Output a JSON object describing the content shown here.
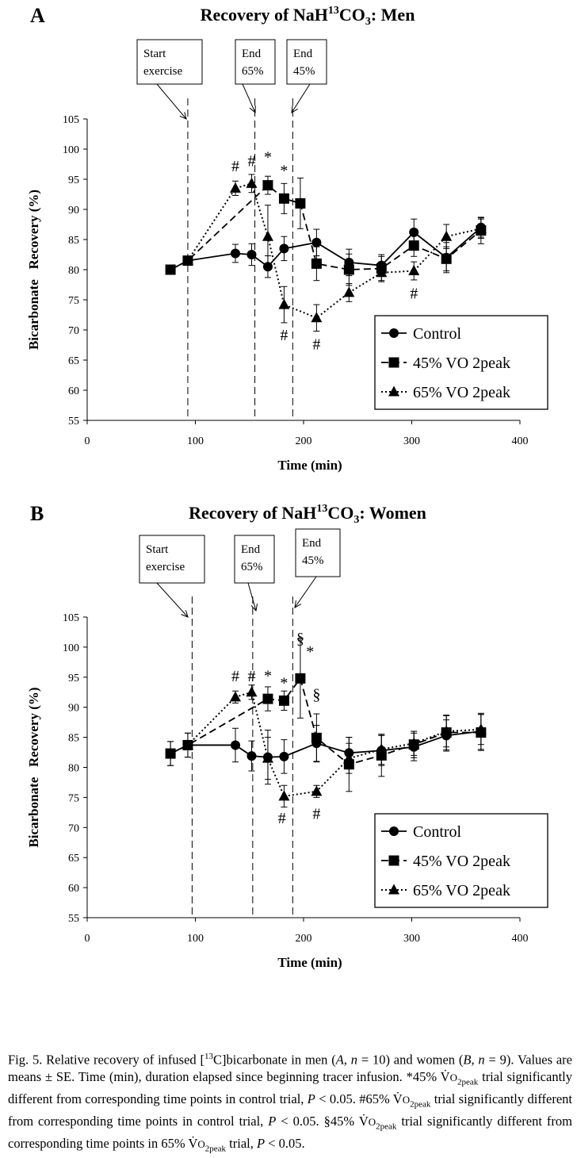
{
  "panels": [
    {
      "letter": "A",
      "title_base": "Recovery of NaH",
      "title_sup": "13",
      "title_mid": "CO",
      "title_sub": "3",
      "title_end": ": Men",
      "chart_data": {
        "type": "line",
        "xlabel": "Time (min)",
        "ylabel_word1": "Bicarbonate",
        "ylabel_word2": "Recovery (%)",
        "xlim": [
          0,
          400
        ],
        "ylim": [
          55,
          105
        ],
        "xticks": [
          0,
          100,
          200,
          300,
          400
        ],
        "yticks": [
          55,
          60,
          65,
          70,
          75,
          80,
          85,
          90,
          95,
          100,
          105
        ],
        "grid": false,
        "legend_position": "bottom-right",
        "series": [
          {
            "name": "Control",
            "marker": "circle",
            "dash": "solid",
            "x": [
              77,
              93,
              137,
              152,
              167,
              182,
              212,
              242,
              272,
              302,
              332,
              364
            ],
            "y": [
              80.0,
              81.5,
              82.7,
              82.5,
              80.5,
              83.5,
              84.5,
              81.2,
              80.7,
              86.2,
              82.0,
              87.0
            ],
            "err": [
              0,
              0,
              1.5,
              1.8,
              1.8,
              2.0,
              2.2,
              2.2,
              1.8,
              2.2,
              2.5,
              1.6
            ]
          },
          {
            "name": "45% VO 2peak",
            "marker": "square",
            "dash": "dashed",
            "x": [
              77,
              93,
              167,
              182,
              197,
              212,
              242,
              272,
              302,
              332,
              364
            ],
            "y": [
              80.0,
              81.5,
              94.0,
              91.8,
              91.0,
              81.0,
              80.0,
              80.2,
              84.0,
              81.8,
              86.5
            ],
            "err": [
              0,
              0,
              1.5,
              2.5,
              4.2,
              2.8,
              2.6,
              2.0,
              1.8,
              2.0,
              2.2
            ]
          },
          {
            "name": "65% VO 2peak",
            "marker": "triangle",
            "dash": "dotted",
            "x": [
              93,
              137,
              152,
              167,
              182,
              212,
              242,
              272,
              302,
              332,
              364
            ],
            "y": [
              81.5,
              93.5,
              94.3,
              85.5,
              74.2,
              72.0,
              76.2,
              79.5,
              79.8,
              85.5,
              86.8
            ],
            "err": [
              0,
              1.2,
              1.5,
              5.2,
              3.0,
              2.2,
              1.5,
              1.5,
              1.5,
              2.0,
              1.6
            ]
          }
        ],
        "event_lines": [
          {
            "x": 93,
            "label_lines": [
              "Start",
              "exercise"
            ],
            "box_x": 173,
            "box_y": 50,
            "box_w": 82,
            "box_h": 56,
            "arrow_from": [
              198,
              106
            ],
            "arrow_to": [
              235,
              150
            ]
          },
          {
            "x": 155,
            "label_lines": [
              "End",
              "65%"
            ],
            "box_x": 297,
            "box_y": 50,
            "box_w": 50,
            "box_h": 56,
            "arrow_from": [
              306,
              106
            ],
            "arrow_to": [
              322,
              142
            ]
          },
          {
            "x": 190,
            "label_lines": [
              "End",
              "45%"
            ],
            "box_x": 362,
            "box_y": 50,
            "box_w": 50,
            "box_h": 56,
            "arrow_from": [
              391,
              106
            ],
            "arrow_to": [
              368,
              142
            ]
          }
        ],
        "annotations": [
          {
            "text": "#",
            "x": 137,
            "y": 96.3
          },
          {
            "text": "#",
            "x": 152,
            "y": 97.2
          },
          {
            "text": "*",
            "x": 167,
            "y": 97.8
          },
          {
            "text": "*",
            "x": 182,
            "y": 95.6
          },
          {
            "text": "#",
            "x": 182,
            "y": 68.3
          },
          {
            "text": "#",
            "x": 212,
            "y": 66.8
          },
          {
            "text": "#",
            "x": 302,
            "y": 75.2
          }
        ]
      }
    },
    {
      "letter": "B",
      "title_base": "Recovery of NaH",
      "title_sup": "13",
      "title_mid": "CO",
      "title_sub": "3",
      "title_end": ": Women",
      "chart_data": {
        "type": "line",
        "xlabel": "Time (min)",
        "ylabel_word1": "Bicarbonate",
        "ylabel_word2": "Recovery (%)",
        "xlim": [
          0,
          400
        ],
        "ylim": [
          55,
          105
        ],
        "xticks": [
          0,
          100,
          200,
          300,
          400
        ],
        "yticks": [
          55,
          60,
          65,
          70,
          75,
          80,
          85,
          90,
          95,
          100,
          105
        ],
        "grid": false,
        "legend_position": "bottom-right",
        "series": [
          {
            "name": "Control",
            "marker": "circle",
            "dash": "solid",
            "x": [
              77,
              93,
              137,
              152,
              167,
              182,
              212,
              242,
              272,
              302,
              332,
              364
            ],
            "y": [
              82.3,
              83.7,
              83.7,
              81.9,
              81.7,
              81.8,
              84.0,
              82.4,
              82.8,
              83.4,
              85.3,
              86.0
            ],
            "err": [
              2.0,
              2.0,
              2.8,
              2.5,
              4.5,
              2.8,
              3.0,
              2.6,
              2.5,
              2.3,
              2.6,
              3.0
            ]
          },
          {
            "name": "45% VO 2peak",
            "marker": "square",
            "dash": "dashed",
            "x": [
              77,
              93,
              167,
              182,
              197,
              212,
              242,
              272,
              302,
              332,
              364
            ],
            "y": [
              82.3,
              83.7,
              91.4,
              91.1,
              94.8,
              84.9,
              80.5,
              82.0,
              83.8,
              85.8,
              85.8
            ],
            "err": [
              2.0,
              2.0,
              2.0,
              1.6,
              6.6,
              4.0,
              4.5,
              3.5,
              2.2,
              2.9,
              3.0
            ]
          },
          {
            "name": "65% VO 2peak",
            "marker": "triangle",
            "dash": "dotted",
            "x": [
              93,
              137,
              152,
              167,
              182,
              212,
              242,
              272,
              302,
              332,
              364
            ],
            "y": [
              83.7,
              91.7,
              92.5,
              81.5,
              75.2,
              76.0,
              81.5,
              83.0,
              84.0,
              86.0,
              86.3
            ],
            "err": [
              0,
              1.0,
              1.2,
              3.5,
              1.8,
              1.0,
              2.5,
              2.5,
              2.0,
              2.6,
              2.5
            ]
          }
        ],
        "event_lines": [
          {
            "x": 97,
            "label_lines": [
              "Start",
              "exercise"
            ],
            "box_x": 176,
            "box_y": 47,
            "box_w": 82,
            "box_h": 60,
            "arrow_from": [
              198,
              107
            ],
            "arrow_to": [
              237,
              150
            ]
          },
          {
            "x": 153,
            "label_lines": [
              "End",
              "65%"
            ],
            "box_x": 296,
            "box_y": 47,
            "box_w": 50,
            "box_h": 60,
            "arrow_from": [
              313,
              107
            ],
            "arrow_to": [
              323,
              142
            ]
          },
          {
            "x": 190,
            "label_lines": [
              "End",
              "45%"
            ],
            "box_x": 373,
            "box_y": 39,
            "box_w": 56,
            "box_h": 60,
            "arrow_from": [
              399,
              99
            ],
            "arrow_to": [
              372,
              138
            ]
          }
        ],
        "annotations": [
          {
            "text": "#",
            "x": 137,
            "y": 94.3
          },
          {
            "text": "#",
            "x": 152,
            "y": 94.3
          },
          {
            "text": "*",
            "x": 167,
            "y": 94.4
          },
          {
            "text": "*",
            "x": 182,
            "y": 93.2
          },
          {
            "text": "§",
            "x": 197,
            "y": 100.6
          },
          {
            "text": "*",
            "x": 206,
            "y": 98.4
          },
          {
            "text": "§",
            "x": 212,
            "y": 91.3
          },
          {
            "text": "#",
            "x": 180,
            "y": 70.7
          },
          {
            "text": "#",
            "x": 212,
            "y": 71.4
          }
        ]
      }
    }
  ],
  "caption": {
    "parts": [
      {
        "t": "Fig. 5.  Relative recovery of infused [",
        "s": ""
      },
      {
        "t": "13",
        "s": "sup"
      },
      {
        "t": "C]bicarbonate in men (",
        "s": ""
      },
      {
        "t": "A",
        "s": "i"
      },
      {
        "t": ", ",
        "s": ""
      },
      {
        "t": "n",
        "s": "i"
      },
      {
        "t": " = 10) and women (",
        "s": ""
      },
      {
        "t": "B",
        "s": "i"
      },
      {
        "t": ", ",
        "s": ""
      },
      {
        "t": "n",
        "s": "i"
      },
      {
        "t": " = 9). Values are means ± SE. Time (min), duration elapsed since beginning tracer infusion. *45% V̇",
        "s": ""
      },
      {
        "t": "O",
        "s": "sc"
      },
      {
        "t": "2peak",
        "s": "sub"
      },
      {
        "t": " trial significantly different from corresponding time points in control trial, ",
        "s": ""
      },
      {
        "t": "P",
        "s": "i"
      },
      {
        "t": " < 0.05. #65% V̇",
        "s": ""
      },
      {
        "t": "O",
        "s": "sc"
      },
      {
        "t": "2peak",
        "s": "sub"
      },
      {
        "t": " trial significantly different from corresponding time points in control trial, ",
        "s": ""
      },
      {
        "t": "P",
        "s": "i"
      },
      {
        "t": " < 0.05. §45% V̇",
        "s": ""
      },
      {
        "t": "O",
        "s": "sc"
      },
      {
        "t": "2peak",
        "s": "sub"
      },
      {
        "t": " trial significantly different from corresponding time points in 65% V̇",
        "s": ""
      },
      {
        "t": "O",
        "s": "sc"
      },
      {
        "t": "2peak",
        "s": "sub"
      },
      {
        "t": " trial, ",
        "s": ""
      },
      {
        "t": "P",
        "s": "i"
      },
      {
        "t": " < 0.05.",
        "s": ""
      }
    ]
  }
}
